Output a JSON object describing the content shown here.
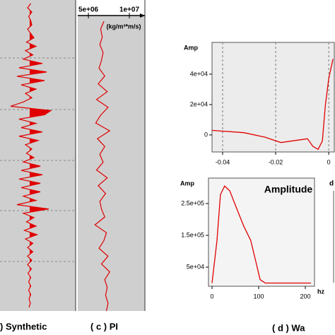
{
  "chart_data": [
    {
      "type": "wiggle",
      "color": "#e00000",
      "values": [
        0.05,
        -0.1,
        0.1,
        -0.05,
        0.05,
        0.1,
        -0.1,
        0.05,
        0.2,
        -0.15,
        0.3,
        -0.2,
        0.15,
        -0.3,
        0.6,
        -0.5,
        0.8,
        -0.6,
        0.7,
        -0.4,
        0.3,
        -0.2,
        0.1,
        -0.3,
        -0.9,
        1.0,
        0.7,
        -0.5,
        0.3,
        -0.4,
        0.6,
        -0.5,
        0.4,
        -0.2,
        0.1,
        -0.15,
        0.2,
        -0.3,
        0.5,
        -0.4,
        0.6,
        -0.5,
        0.5,
        -0.4,
        0.5,
        -0.3,
        0.3,
        -0.6,
        0.9,
        -0.3,
        0.2,
        -0.15,
        0.3,
        -0.25,
        0.35,
        -0.2,
        0.15,
        -0.1,
        0.15,
        -0.1,
        0.1,
        -0.1,
        0.08,
        -0.08,
        0.05,
        -0.05,
        0.05,
        -0.05,
        0.05,
        -0.03,
        0.03,
        -0.03
      ]
    },
    {
      "type": "trace",
      "color": "#e00000",
      "xlabel": "(kg/m³*m/s)",
      "xlim": [
        3700000,
        11900000
      ],
      "xticks": [
        {
          "value": 5000000,
          "label": "5e+06"
        },
        {
          "value": 10000000,
          "label": "1e+07"
        }
      ],
      "values": [
        6900000,
        6500000,
        6700000,
        6400000,
        6800000,
        6600000,
        6300000,
        7000000,
        6200000,
        7300000,
        6000000,
        7400000,
        6500000,
        5900000,
        7600000,
        6100000,
        7000000,
        6400000,
        6800000,
        6000000,
        7300000,
        6200000,
        7100000,
        6400000,
        6600000,
        7000000,
        5800000,
        7200000,
        6900000,
        6300000,
        7400000,
        6600000,
        7600000,
        7000000,
        7300000,
        7100000,
        7400000,
        7200000
      ]
    },
    {
      "type": "line",
      "color": "#e00000",
      "ylabel": "Amp",
      "grid": "x",
      "xlim": [
        -0.044,
        0.0021
      ],
      "ylim": [
        -11200,
        60900
      ],
      "xticks": [
        -0.04,
        -0.02,
        0
      ],
      "yticks": [
        {
          "value": 40000,
          "label": "4e+04"
        },
        {
          "value": 20000,
          "label": "2e+04"
        },
        0
      ],
      "x": [
        -0.044,
        -0.032,
        -0.024,
        -0.018,
        -0.012,
        -0.008,
        -0.006,
        -0.004,
        -0.0024,
        -0.0013,
        0,
        0.0016
      ],
      "values": [
        3000,
        1500,
        -1500,
        -5000,
        -3500,
        -2500,
        -7500,
        -9500,
        -4000,
        19000,
        37000,
        50000
      ]
    },
    {
      "type": "line",
      "color": "#e00000",
      "title": "Amplitude",
      "ylabel": "Amp",
      "xlabel": "hz",
      "xlim": [
        -7.6,
        219.7
      ],
      "ylim": [
        -10000,
        330000
      ],
      "xticks": [
        0,
        100,
        200
      ],
      "yticks": [
        {
          "value": 250000,
          "label": "2.5e+05"
        },
        {
          "value": 150000,
          "label": "1.5e+05"
        },
        {
          "value": 50000,
          "label": "5e+04"
        }
      ],
      "x": [
        0,
        10.6,
        18,
        27,
        38,
        53,
        68,
        83,
        94,
        103,
        114,
        212
      ],
      "values": [
        0,
        134000,
        278000,
        305000,
        290000,
        234000,
        179000,
        134000,
        67000,
        11000,
        0,
        0
      ]
    }
  ],
  "captions": [
    ") Synthetic",
    "( c ) PI",
    "( d ) Wa"
  ],
  "side_text": "d"
}
